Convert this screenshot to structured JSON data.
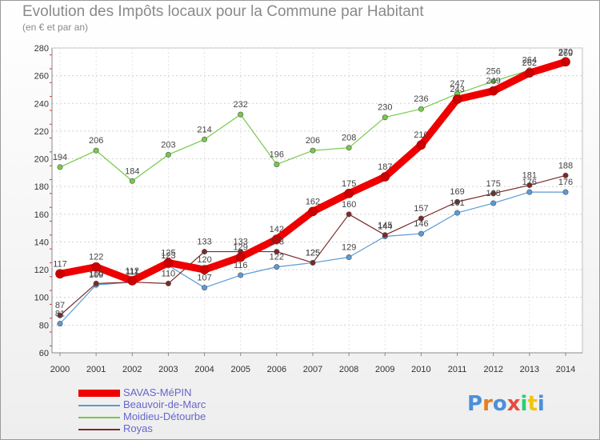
{
  "chart_data": {
    "type": "line",
    "title": "Evolution des Impôts locaux pour la Commune par Habitant",
    "subtitle": "(en € et par an)",
    "xlabel": "",
    "ylabel": "",
    "ylim": [
      60,
      280
    ],
    "yticks": [
      60,
      80,
      100,
      120,
      140,
      160,
      180,
      200,
      220,
      240,
      260,
      280
    ],
    "categories": [
      "2000",
      "2001",
      "2002",
      "2003",
      "2004",
      "2005",
      "2006",
      "2007",
      "2008",
      "2009",
      "2010",
      "2011",
      "2012",
      "2013",
      "2014"
    ],
    "legend_position": "bottom-left",
    "series": [
      {
        "name": "Moidieu-Détourbe",
        "color": "#77c94a",
        "values": [
          194,
          206,
          184,
          203,
          214,
          232,
          196,
          206,
          208,
          230,
          236,
          247,
          256,
          264,
          269
        ],
        "labels": [
          "194",
          "206",
          "184",
          "203",
          "214",
          "232",
          "196",
          "206",
          "208",
          "230",
          "236",
          "247",
          "256",
          "264",
          "269"
        ]
      },
      {
        "name": "Beauvoir-de-Marc",
        "color": "#5b9bd5",
        "values": [
          81,
          109,
          111,
          123,
          107,
          116,
          122,
          125,
          129,
          144,
          146,
          161,
          168,
          176,
          176
        ],
        "labels": [
          "81",
          "109",
          "111",
          "123",
          "107",
          "116",
          "122",
          "125",
          "129",
          "144",
          "146",
          "161",
          "168",
          "176",
          "176"
        ]
      },
      {
        "name": "Royas",
        "color": "#7a2a2a",
        "values": [
          87,
          110,
          111,
          110,
          133,
          133,
          133,
          125,
          160,
          145,
          157,
          169,
          175,
          181,
          188
        ],
        "labels": [
          "87",
          "110",
          "111",
          "110",
          "133",
          "133",
          "133",
          "125",
          "160",
          "145",
          "157",
          "169",
          "175",
          "181",
          "188"
        ]
      },
      {
        "name": "SAVAS-MéPIN",
        "color": "#ee0000",
        "values": [
          117,
          122,
          112,
          125,
          120,
          129,
          142,
          162,
          175,
          187,
          210,
          243,
          249,
          262,
          270
        ],
        "labels": [
          "117",
          "122",
          "112",
          "125",
          "120",
          "129",
          "142",
          "162",
          "175",
          "187",
          "210",
          "243",
          "249",
          "262",
          "270"
        ]
      }
    ]
  },
  "legend": [
    {
      "name": "SAVAS-MéPIN",
      "color": "#ee0000",
      "thickness": "thick"
    },
    {
      "name": "Beauvoir-de-Marc",
      "color": "#5b9bd5",
      "thickness": "thin"
    },
    {
      "name": "Moidieu-Détourbe",
      "color": "#77c94a",
      "thickness": "thin"
    },
    {
      "name": "Royas",
      "color": "#7a2a2a",
      "thickness": "thin"
    }
  ],
  "logo": {
    "letters": [
      "P",
      "r",
      "o",
      "x",
      "i",
      "t",
      "i"
    ],
    "colors": [
      "#4a90d9",
      "#e67e22",
      "#4a90d9",
      "#e74c3c",
      "#2ecc71",
      "#f1c40f",
      "#4a90d9"
    ]
  }
}
